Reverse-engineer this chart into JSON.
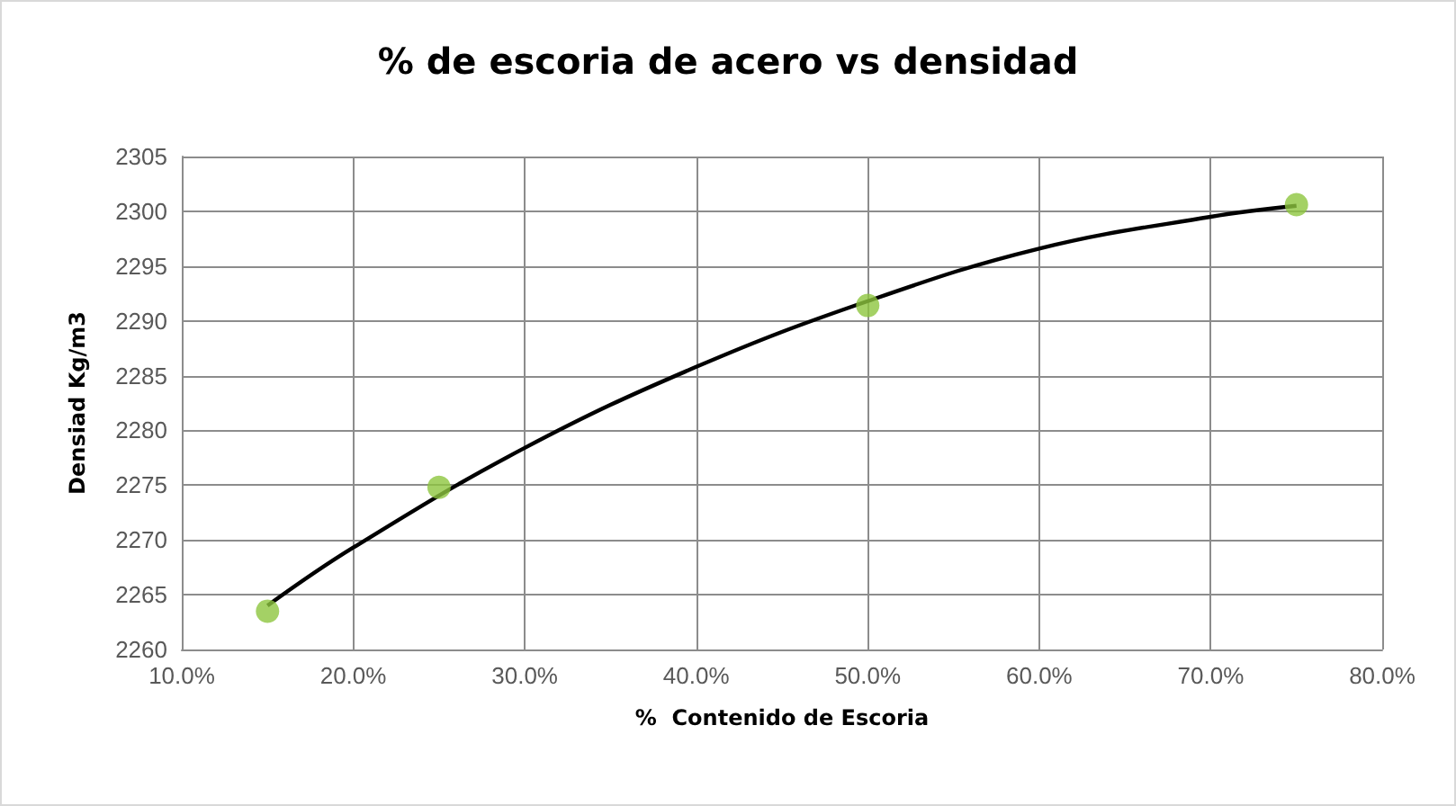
{
  "chart_data": {
    "type": "scatter",
    "title": "% de escoria de acero vs densidad",
    "xlabel": "%  Contenido de Escoria",
    "ylabel": "Densiad Kg/m3",
    "series": [
      {
        "color": "#8dc63f",
        "x": [
          15,
          25,
          50,
          75
        ],
        "values": [
          2263.5,
          2274.8,
          2291.4,
          2300.6
        ],
        "marker": "circle"
      },
      {
        "type": "line",
        "color": "#000000",
        "x": [
          15,
          20,
          30,
          40,
          50,
          60,
          70,
          75
        ],
        "values": [
          2264,
          2269.3,
          2278.4,
          2285.8,
          2291.8,
          2296.6,
          2299.5,
          2300.5
        ],
        "marker": "none",
        "line_style": "solid"
      }
    ],
    "xlim": [
      10,
      80
    ],
    "xticks": [
      {
        "value": 10,
        "label": "10.0%"
      },
      {
        "value": 20,
        "label": "20.0%"
      },
      {
        "value": 30,
        "label": "30.0%"
      },
      {
        "value": 40,
        "label": "40.0%"
      },
      {
        "value": 50,
        "label": "50.0%"
      },
      {
        "value": 60,
        "label": "60.0%"
      },
      {
        "value": 70,
        "label": "70.0%"
      },
      {
        "value": 80,
        "label": "80.0%"
      }
    ],
    "ylim": [
      2260,
      2305
    ],
    "yticks": [
      2260,
      2265,
      2270,
      2275,
      2280,
      2285,
      2290,
      2295,
      2300,
      2305
    ],
    "grid": true
  }
}
